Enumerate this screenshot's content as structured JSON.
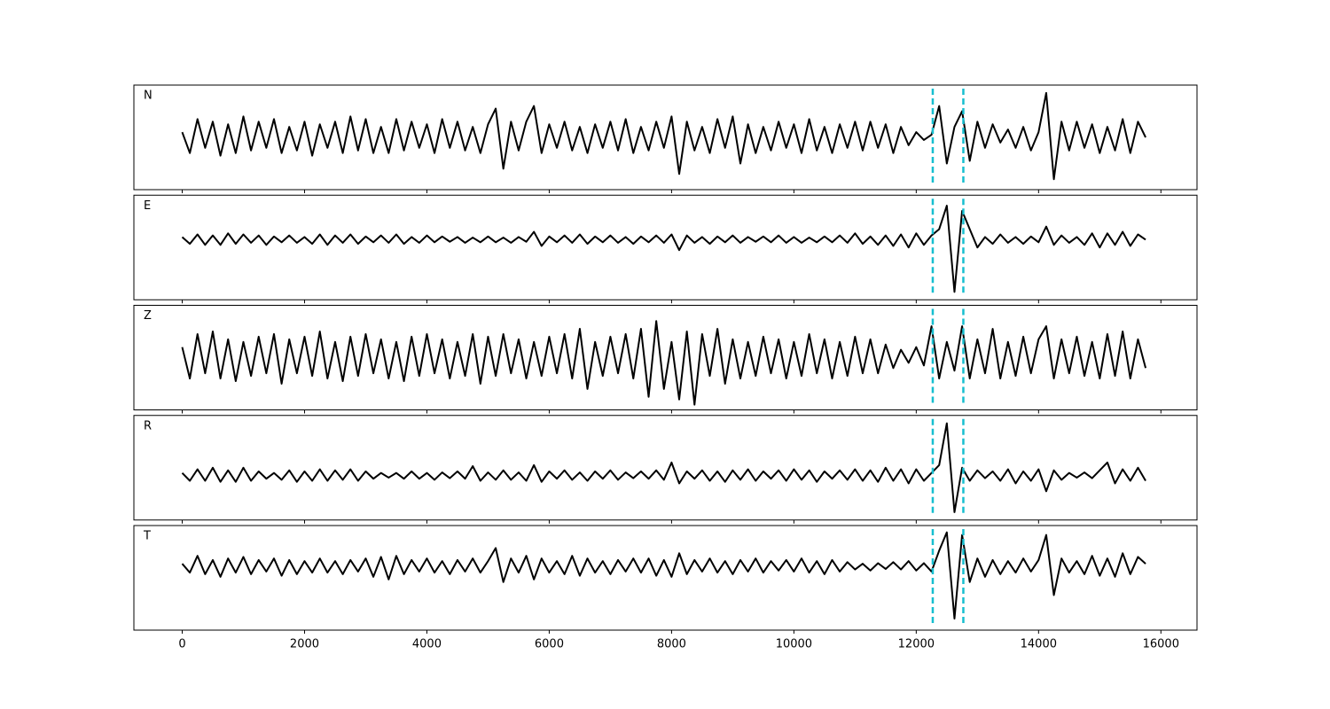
{
  "chart_data": {
    "type": "line",
    "stacked": true,
    "line_color": "#000000",
    "xlim": [
      -790,
      16590
    ],
    "xticks": [
      0,
      2000,
      4000,
      6000,
      8000,
      10000,
      12000,
      14000,
      16000
    ],
    "vlines": [
      12270,
      12770
    ],
    "vline_color": "#17becf",
    "vline_style": "dashed",
    "x": [
      0,
      125,
      250,
      375,
      500,
      625,
      750,
      875,
      1000,
      1125,
      1250,
      1375,
      1500,
      1625,
      1750,
      1875,
      2000,
      2125,
      2250,
      2375,
      2500,
      2625,
      2750,
      2875,
      3000,
      3125,
      3250,
      3375,
      3500,
      3625,
      3750,
      3875,
      4000,
      4125,
      4250,
      4375,
      4500,
      4625,
      4750,
      4875,
      5000,
      5125,
      5250,
      5375,
      5500,
      5625,
      5750,
      5875,
      6000,
      6125,
      6250,
      6375,
      6500,
      6625,
      6750,
      6875,
      7000,
      7125,
      7250,
      7375,
      7500,
      7625,
      7750,
      7875,
      8000,
      8125,
      8250,
      8375,
      8500,
      8625,
      8750,
      8875,
      9000,
      9125,
      9250,
      9375,
      9500,
      9625,
      9750,
      9875,
      10000,
      10125,
      10250,
      10375,
      10500,
      10625,
      10750,
      10875,
      11000,
      11125,
      11250,
      11375,
      11500,
      11625,
      11750,
      11875,
      12000,
      12125,
      12250,
      12375,
      12500,
      12625,
      12750,
      12875,
      13000,
      13125,
      13250,
      13375,
      13500,
      13625,
      13750,
      13875,
      14000,
      14125,
      14250,
      14375,
      14500,
      14625,
      14750,
      14875,
      15000,
      15125,
      15250,
      15375,
      15500,
      15625,
      15750
    ],
    "series": [
      {
        "name": "N",
        "ylim": [
          -1,
          1
        ],
        "values": [
          0.1,
          -0.3,
          0.35,
          -0.2,
          0.3,
          -0.35,
          0.25,
          -0.3,
          0.4,
          -0.25,
          0.3,
          -0.2,
          0.35,
          -0.3,
          0.2,
          -0.25,
          0.3,
          -0.35,
          0.25,
          -0.2,
          0.3,
          -0.3,
          0.4,
          -0.25,
          0.35,
          -0.3,
          0.2,
          -0.3,
          0.35,
          -0.25,
          0.3,
          -0.2,
          0.25,
          -0.3,
          0.35,
          -0.2,
          0.3,
          -0.25,
          0.2,
          -0.3,
          0.25,
          0.55,
          -0.6,
          0.3,
          -0.25,
          0.3,
          0.6,
          -0.3,
          0.25,
          -0.2,
          0.3,
          -0.25,
          0.2,
          -0.3,
          0.25,
          -0.2,
          0.3,
          -0.25,
          0.35,
          -0.3,
          0.2,
          -0.25,
          0.3,
          -0.2,
          0.4,
          -0.7,
          0.3,
          -0.25,
          0.2,
          -0.3,
          0.35,
          -0.2,
          0.4,
          -0.5,
          0.25,
          -0.3,
          0.2,
          -0.25,
          0.3,
          -0.2,
          0.25,
          -0.3,
          0.35,
          -0.25,
          0.2,
          -0.3,
          0.25,
          -0.2,
          0.3,
          -0.25,
          0.3,
          -0.2,
          0.25,
          -0.3,
          0.2,
          -0.15,
          0.1,
          -0.05,
          0.05,
          0.6,
          -0.5,
          0.2,
          0.5,
          -0.45,
          0.3,
          -0.2,
          0.25,
          -0.1,
          0.15,
          -0.2,
          0.2,
          -0.25,
          0.1,
          0.85,
          -0.8,
          0.3,
          -0.25,
          0.3,
          -0.2,
          0.25,
          -0.3,
          0.2,
          -0.25,
          0.35,
          -0.3,
          0.3,
          0.0
        ]
      },
      {
        "name": "E",
        "ylim": [
          -1.15,
          0.85
        ],
        "values": [
          0.05,
          -0.08,
          0.1,
          -0.1,
          0.08,
          -0.1,
          0.12,
          -0.08,
          0.1,
          -0.06,
          0.08,
          -0.1,
          0.06,
          -0.05,
          0.08,
          -0.06,
          0.05,
          -0.08,
          0.1,
          -0.1,
          0.08,
          -0.06,
          0.1,
          -0.08,
          0.06,
          -0.05,
          0.08,
          -0.06,
          0.1,
          -0.08,
          0.05,
          -0.06,
          0.08,
          -0.05,
          0.06,
          -0.04,
          0.05,
          -0.06,
          0.04,
          -0.05,
          0.06,
          -0.05,
          0.04,
          -0.06,
          0.05,
          -0.04,
          0.15,
          -0.12,
          0.06,
          -0.05,
          0.08,
          -0.06,
          0.1,
          -0.08,
          0.06,
          -0.05,
          0.08,
          -0.06,
          0.05,
          -0.08,
          0.06,
          -0.05,
          0.08,
          -0.06,
          0.1,
          -0.2,
          0.08,
          -0.06,
          0.05,
          -0.08,
          0.06,
          -0.05,
          0.08,
          -0.06,
          0.05,
          -0.04,
          0.06,
          -0.05,
          0.08,
          -0.06,
          0.05,
          -0.06,
          0.04,
          -0.05,
          0.06,
          -0.05,
          0.08,
          -0.06,
          0.12,
          -0.08,
          0.06,
          -0.1,
          0.08,
          -0.12,
          0.1,
          -0.15,
          0.12,
          -0.1,
          0.08,
          0.2,
          0.65,
          -1.0,
          0.55,
          0.2,
          -0.15,
          0.05,
          -0.08,
          0.1,
          -0.06,
          0.05,
          -0.08,
          0.06,
          -0.05,
          0.25,
          -0.1,
          0.08,
          -0.06,
          0.05,
          -0.1,
          0.12,
          -0.15,
          0.12,
          -0.1,
          0.15,
          -0.12,
          0.1,
          0.0
        ]
      },
      {
        "name": "Z",
        "ylim": [
          -1,
          1
        ],
        "values": [
          0.2,
          -0.4,
          0.45,
          -0.3,
          0.5,
          -0.4,
          0.35,
          -0.45,
          0.3,
          -0.35,
          0.4,
          -0.3,
          0.45,
          -0.5,
          0.35,
          -0.3,
          0.4,
          -0.35,
          0.5,
          -0.4,
          0.3,
          -0.45,
          0.4,
          -0.35,
          0.45,
          -0.3,
          0.35,
          -0.4,
          0.3,
          -0.45,
          0.4,
          -0.35,
          0.45,
          -0.3,
          0.35,
          -0.4,
          0.3,
          -0.35,
          0.45,
          -0.5,
          0.4,
          -0.35,
          0.45,
          -0.3,
          0.35,
          -0.4,
          0.3,
          -0.35,
          0.4,
          -0.3,
          0.45,
          -0.4,
          0.55,
          -0.6,
          0.3,
          -0.35,
          0.4,
          -0.3,
          0.45,
          -0.4,
          0.55,
          -0.75,
          0.7,
          -0.6,
          0.3,
          -0.8,
          0.5,
          -0.9,
          0.45,
          -0.35,
          0.55,
          -0.5,
          0.35,
          -0.4,
          0.3,
          -0.35,
          0.4,
          -0.3,
          0.35,
          -0.4,
          0.3,
          -0.35,
          0.45,
          -0.3,
          0.35,
          -0.4,
          0.3,
          -0.35,
          0.4,
          -0.3,
          0.35,
          -0.3,
          0.25,
          -0.2,
          0.15,
          -0.1,
          0.2,
          -0.15,
          0.6,
          -0.4,
          0.3,
          -0.25,
          0.6,
          -0.4,
          0.35,
          -0.3,
          0.55,
          -0.4,
          0.3,
          -0.35,
          0.4,
          -0.3,
          0.35,
          0.6,
          -0.4,
          0.35,
          -0.3,
          0.4,
          -0.35,
          0.3,
          -0.4,
          0.45,
          -0.35,
          0.5,
          -0.4,
          0.35,
          -0.2
        ]
      },
      {
        "name": "R",
        "ylim": [
          -0.85,
          1.15
        ],
        "values": [
          0.05,
          -0.1,
          0.12,
          -0.1,
          0.15,
          -0.12,
          0.1,
          -0.12,
          0.15,
          -0.1,
          0.08,
          -0.06,
          0.05,
          -0.08,
          0.1,
          -0.12,
          0.08,
          -0.1,
          0.12,
          -0.1,
          0.1,
          -0.08,
          0.12,
          -0.1,
          0.08,
          -0.06,
          0.05,
          -0.04,
          0.05,
          -0.06,
          0.08,
          -0.06,
          0.05,
          -0.08,
          0.06,
          -0.05,
          0.08,
          -0.06,
          0.18,
          -0.1,
          0.06,
          -0.08,
          0.1,
          -0.08,
          0.06,
          -0.1,
          0.2,
          -0.12,
          0.08,
          -0.06,
          0.1,
          -0.08,
          0.06,
          -0.1,
          0.08,
          -0.06,
          0.1,
          -0.08,
          0.06,
          -0.05,
          0.08,
          -0.06,
          0.1,
          -0.08,
          0.25,
          -0.15,
          0.08,
          -0.06,
          0.1,
          -0.1,
          0.08,
          -0.12,
          0.1,
          -0.08,
          0.12,
          -0.1,
          0.08,
          -0.06,
          0.1,
          -0.1,
          0.12,
          -0.08,
          0.1,
          -0.12,
          0.08,
          -0.06,
          0.1,
          -0.08,
          0.12,
          -0.1,
          0.1,
          -0.12,
          0.15,
          -0.1,
          0.12,
          -0.15,
          0.12,
          -0.1,
          0.05,
          0.2,
          1.0,
          -0.7,
          0.15,
          -0.1,
          0.1,
          -0.05,
          0.08,
          -0.1,
          0.12,
          -0.15,
          0.08,
          -0.1,
          0.12,
          -0.3,
          0.1,
          -0.08,
          0.05,
          -0.04,
          0.06,
          -0.05,
          0.1,
          0.25,
          -0.15,
          0.12,
          -0.1,
          0.15,
          -0.1
        ]
      },
      {
        "name": "T",
        "ylim": [
          -1.22,
          0.78
        ],
        "values": [
          0.05,
          -0.12,
          0.2,
          -0.15,
          0.12,
          -0.2,
          0.15,
          -0.12,
          0.18,
          -0.15,
          0.12,
          -0.1,
          0.15,
          -0.18,
          0.12,
          -0.15,
          0.1,
          -0.12,
          0.15,
          -0.12,
          0.1,
          -0.15,
          0.12,
          -0.1,
          0.15,
          -0.2,
          0.18,
          -0.25,
          0.2,
          -0.15,
          0.12,
          -0.1,
          0.15,
          -0.12,
          0.1,
          -0.15,
          0.12,
          -0.1,
          0.15,
          -0.12,
          0.1,
          0.35,
          -0.3,
          0.15,
          -0.12,
          0.2,
          -0.25,
          0.15,
          -0.12,
          0.1,
          -0.15,
          0.2,
          -0.18,
          0.15,
          -0.12,
          0.1,
          -0.15,
          0.12,
          -0.1,
          0.15,
          -0.12,
          0.15,
          -0.18,
          0.12,
          -0.2,
          0.25,
          -0.15,
          0.12,
          -0.1,
          0.15,
          -0.12,
          0.1,
          -0.15,
          0.12,
          -0.1,
          0.15,
          -0.12,
          0.1,
          -0.08,
          0.12,
          -0.1,
          0.15,
          -0.12,
          0.1,
          -0.15,
          0.12,
          -0.1,
          0.08,
          -0.06,
          0.05,
          -0.08,
          0.06,
          -0.05,
          0.08,
          -0.06,
          0.1,
          -0.08,
          0.06,
          -0.1,
          0.3,
          0.65,
          -1.0,
          0.6,
          -0.3,
          0.15,
          -0.2,
          0.12,
          -0.15,
          0.1,
          -0.12,
          0.15,
          -0.1,
          0.12,
          0.6,
          -0.55,
          0.15,
          -0.12,
          0.1,
          -0.15,
          0.2,
          -0.18,
          0.15,
          -0.2,
          0.25,
          -0.15,
          0.18,
          0.05
        ]
      }
    ]
  }
}
